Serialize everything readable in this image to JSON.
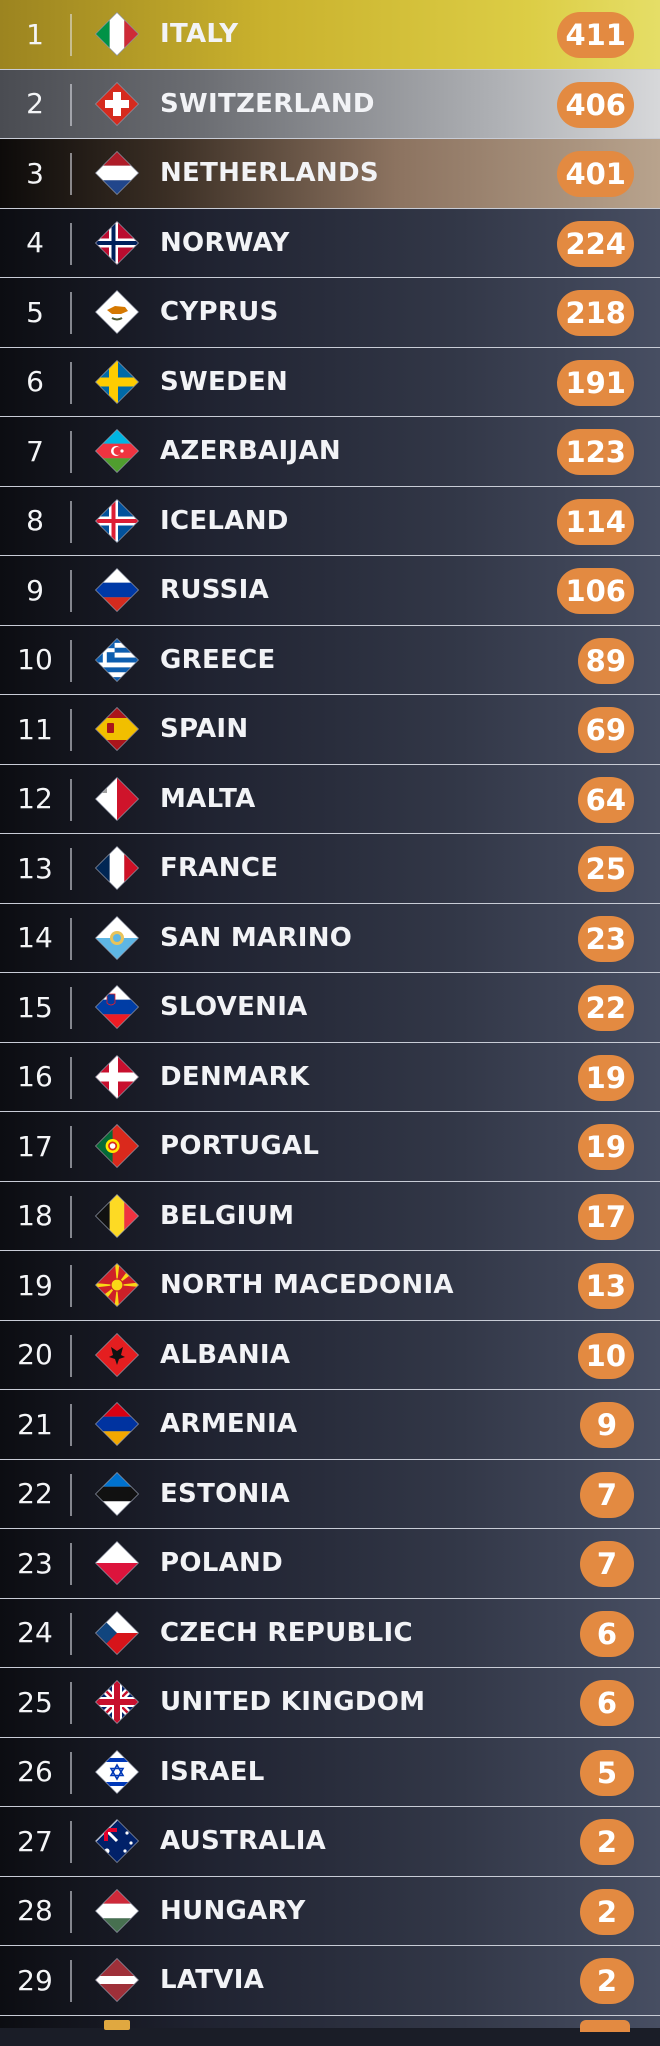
{
  "colors": {
    "points_badge": "#e38a41",
    "row_first": "#dccd45",
    "row_second": "#c9cacd",
    "row_third": "#a38d78",
    "row_default": "#2c3040"
  },
  "standings": [
    {
      "rank": "1",
      "country": "ITALY",
      "points": "411",
      "flag": "italy-flag-icon"
    },
    {
      "rank": "2",
      "country": "SWITZERLAND",
      "points": "406",
      "flag": "switzerland-flag-icon"
    },
    {
      "rank": "3",
      "country": "NETHERLANDS",
      "points": "401",
      "flag": "netherlands-flag-icon"
    },
    {
      "rank": "4",
      "country": "NORWAY",
      "points": "224",
      "flag": "norway-flag-icon"
    },
    {
      "rank": "5",
      "country": "CYPRUS",
      "points": "218",
      "flag": "cyprus-flag-icon"
    },
    {
      "rank": "6",
      "country": "SWEDEN",
      "points": "191",
      "flag": "sweden-flag-icon"
    },
    {
      "rank": "7",
      "country": "AZERBAIJAN",
      "points": "123",
      "flag": "azerbaijan-flag-icon"
    },
    {
      "rank": "8",
      "country": "ICELAND",
      "points": "114",
      "flag": "iceland-flag-icon"
    },
    {
      "rank": "9",
      "country": "RUSSIA",
      "points": "106",
      "flag": "russia-flag-icon"
    },
    {
      "rank": "10",
      "country": "GREECE",
      "points": "89",
      "flag": "greece-flag-icon"
    },
    {
      "rank": "11",
      "country": "SPAIN",
      "points": "69",
      "flag": "spain-flag-icon"
    },
    {
      "rank": "12",
      "country": "MALTA",
      "points": "64",
      "flag": "malta-flag-icon"
    },
    {
      "rank": "13",
      "country": "FRANCE",
      "points": "25",
      "flag": "france-flag-icon"
    },
    {
      "rank": "14",
      "country": "SAN MARINO",
      "points": "23",
      "flag": "san-marino-flag-icon"
    },
    {
      "rank": "15",
      "country": "SLOVENIA",
      "points": "22",
      "flag": "slovenia-flag-icon"
    },
    {
      "rank": "16",
      "country": "DENMARK",
      "points": "19",
      "flag": "denmark-flag-icon"
    },
    {
      "rank": "17",
      "country": "PORTUGAL",
      "points": "19",
      "flag": "portugal-flag-icon"
    },
    {
      "rank": "18",
      "country": "BELGIUM",
      "points": "17",
      "flag": "belgium-flag-icon"
    },
    {
      "rank": "19",
      "country": "NORTH MACEDONIA",
      "points": "13",
      "flag": "north-macedonia-flag-icon"
    },
    {
      "rank": "20",
      "country": "ALBANIA",
      "points": "10",
      "flag": "albania-flag-icon"
    },
    {
      "rank": "21",
      "country": "ARMENIA",
      "points": "9",
      "flag": "armenia-flag-icon"
    },
    {
      "rank": "22",
      "country": "ESTONIA",
      "points": "7",
      "flag": "estonia-flag-icon"
    },
    {
      "rank": "23",
      "country": "POLAND",
      "points": "7",
      "flag": "poland-flag-icon"
    },
    {
      "rank": "24",
      "country": "CZECH REPUBLIC",
      "points": "6",
      "flag": "czech-republic-flag-icon"
    },
    {
      "rank": "25",
      "country": "UNITED KINGDOM",
      "points": "6",
      "flag": "united-kingdom-flag-icon"
    },
    {
      "rank": "26",
      "country": "ISRAEL",
      "points": "5",
      "flag": "israel-flag-icon"
    },
    {
      "rank": "27",
      "country": "AUSTRALIA",
      "points": "2",
      "flag": "australia-flag-icon"
    },
    {
      "rank": "28",
      "country": "HUNGARY",
      "points": "2",
      "flag": "hungary-flag-icon"
    },
    {
      "rank": "29",
      "country": "LATVIA",
      "points": "2",
      "flag": "latvia-flag-icon"
    }
  ]
}
